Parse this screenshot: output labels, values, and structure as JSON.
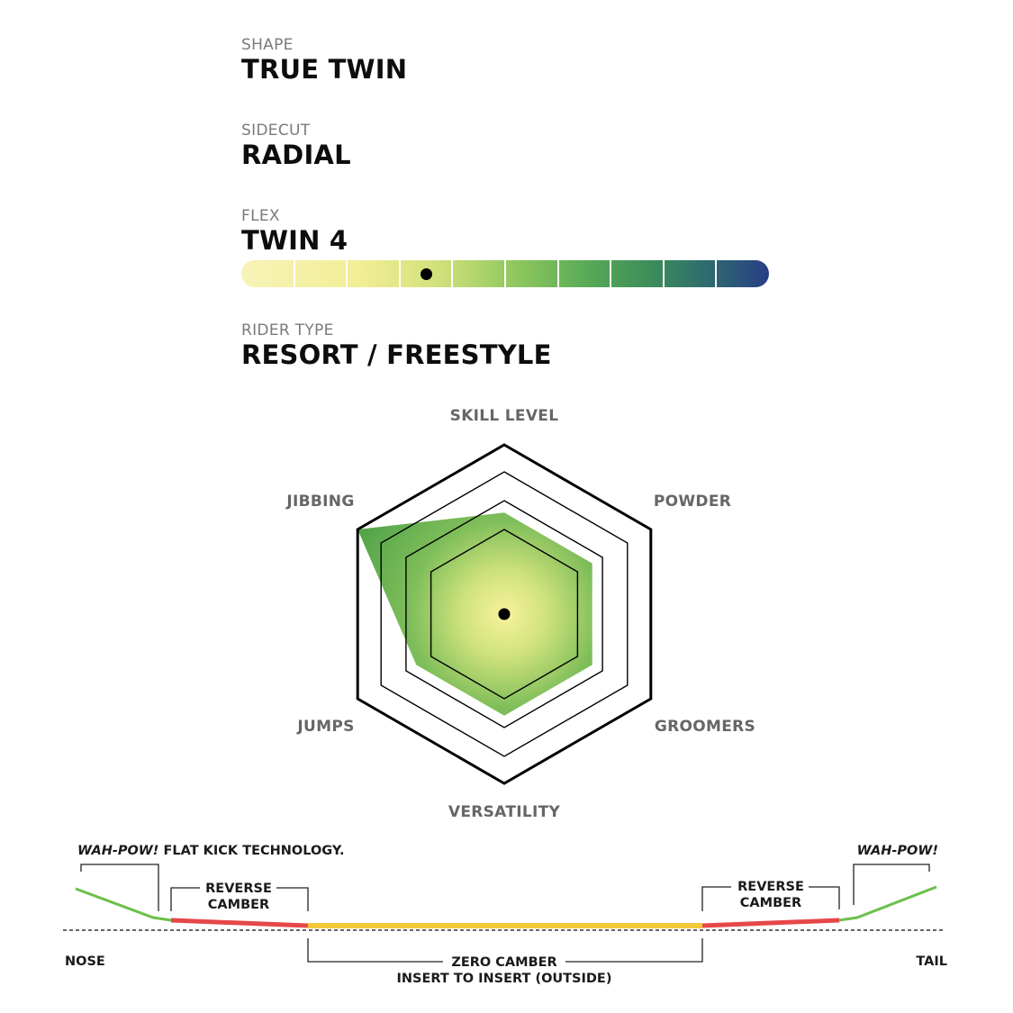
{
  "specs": {
    "shape": {
      "label": "SHAPE",
      "value": "TRUE TWIN"
    },
    "sidecut": {
      "label": "SIDECUT",
      "value": "RADIAL"
    },
    "flex": {
      "label": "FLEX",
      "value": "TWIN 4",
      "scale_segments": 10,
      "rating": 3.5
    },
    "rider_type": {
      "label": "RIDER TYPE",
      "value": "RESORT / FREESTYLE"
    }
  },
  "radar": {
    "axes": [
      "SKILL LEVEL",
      "POWDER",
      "GROOMERS",
      "VERSATILITY",
      "JUMPS",
      "JIBBING"
    ],
    "rings": 4,
    "values": [
      2.4,
      2.4,
      2.4,
      2.4,
      2.4,
      4.0
    ],
    "values_note_scale_max": 4,
    "fill_color": "#5aa84b",
    "center_color": "#f7f29a"
  },
  "profile": {
    "labels": {
      "wahpow_left_brand": "WAH-POW!",
      "wahpow_left_rest": " FLAT KICK TECHNOLOGY.",
      "wahpow_right": "WAH-POW!",
      "reverse_camber_line1": "REVERSE",
      "reverse_camber_line2": "CAMBER",
      "zero_camber_line1": "ZERO CAMBER",
      "zero_camber_line2": "INSERT TO INSERT (OUTSIDE)",
      "nose": "NOSE",
      "tail": "TAIL"
    },
    "colors": {
      "kick": "#6cc04a",
      "reverse": "#e5484a",
      "zero": "#f4c93a"
    }
  }
}
